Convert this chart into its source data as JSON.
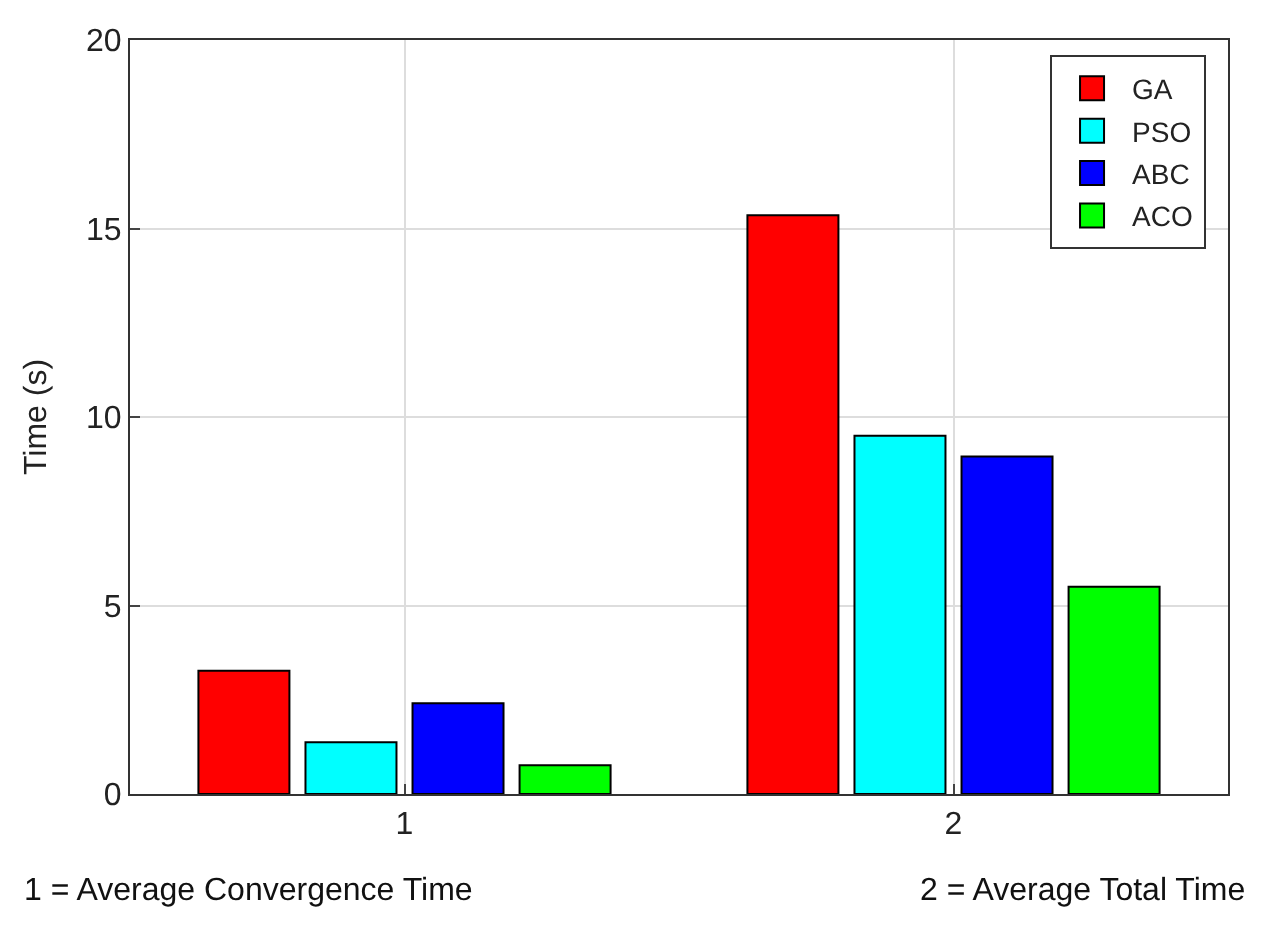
{
  "chart_data": {
    "type": "bar",
    "ylabel": "Time (s)",
    "x": [
      1,
      2
    ],
    "xlim": [
      0.5,
      2.5
    ],
    "xticks": [
      1,
      2
    ],
    "ylim": [
      0,
      20
    ],
    "yticks": [
      0,
      5,
      10,
      15,
      20
    ],
    "grid": true,
    "legend": "top right",
    "series": [
      {
        "name": "GA",
        "color": "#ff0000",
        "values": [
          3.27,
          15.35
        ]
      },
      {
        "name": "PSO",
        "color": "#00ffff",
        "values": [
          1.37,
          9.5
        ]
      },
      {
        "name": "ABC",
        "color": "#0000ff",
        "values": [
          2.41,
          8.95
        ]
      },
      {
        "name": "ACO",
        "color": "#00ff00",
        "values": [
          0.76,
          5.5
        ]
      }
    ],
    "annotations": [
      "1 = Average Convergence Time",
      "2 = Average Total Time"
    ]
  }
}
